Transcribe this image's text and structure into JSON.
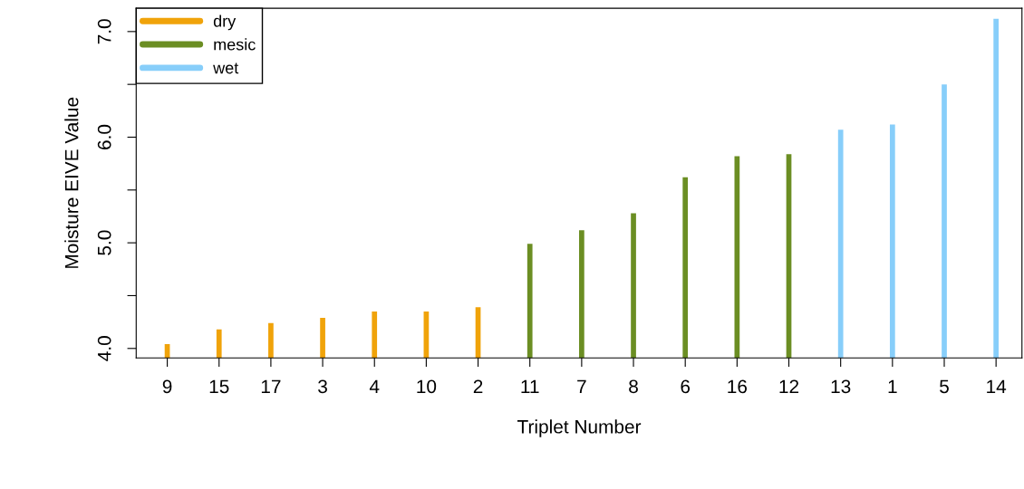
{
  "chart_data": {
    "type": "bar",
    "xlabel": "Triplet Number",
    "ylabel": "Moisture EIVE Value",
    "categories": [
      "9",
      "15",
      "17",
      "3",
      "4",
      "10",
      "2",
      "11",
      "7",
      "8",
      "6",
      "16",
      "12",
      "13",
      "1",
      "5",
      "14"
    ],
    "series": [
      {
        "name": "dry",
        "color": "#f0a30a",
        "values": [
          4.04,
          4.18,
          4.24,
          4.29,
          4.35,
          4.35,
          4.39,
          null,
          null,
          null,
          null,
          null,
          null,
          null,
          null,
          null,
          null
        ]
      },
      {
        "name": "mesic",
        "color": "#6b8e23",
        "values": [
          null,
          null,
          null,
          null,
          null,
          null,
          null,
          4.99,
          5.12,
          5.28,
          5.62,
          5.82,
          5.84,
          null,
          null,
          null,
          null
        ]
      },
      {
        "name": "wet",
        "color": "#87cefa",
        "values": [
          null,
          null,
          null,
          null,
          null,
          null,
          null,
          null,
          null,
          null,
          null,
          null,
          null,
          6.07,
          6.12,
          6.5,
          7.12
        ]
      }
    ],
    "ylim": [
      3.91,
      7.22
    ],
    "yticks": [
      {
        "value": 4,
        "label": "4.0"
      },
      {
        "value": 4.5,
        "label": null
      },
      {
        "value": 5,
        "label": "5.0"
      },
      {
        "value": 5.5,
        "label": null
      },
      {
        "value": 6,
        "label": "6.0"
      },
      {
        "value": 6.5,
        "label": null
      },
      {
        "value": 7,
        "label": "7.0"
      }
    ],
    "grid": false,
    "legend": "top left"
  }
}
